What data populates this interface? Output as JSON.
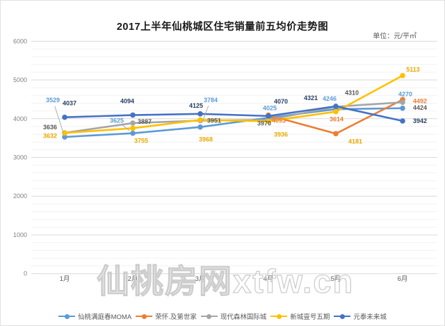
{
  "header": {
    "title": "2017上半年仙桃城区住宅销量前五均价走势图",
    "unit_label": "单位：元/平㎡"
  },
  "watermark": {
    "text": "仙桃房网xtfw.cn"
  },
  "chart_data": {
    "type": "line",
    "title": "2017上半年仙桃城区住宅销量前五均价走势图",
    "unit": "元/平㎡",
    "categories": [
      "1月",
      "2月",
      "3月",
      "4月",
      "5月",
      "6月"
    ],
    "ylim": [
      0,
      6000
    ],
    "y_major_ticks": [
      0,
      1000,
      2000,
      3000,
      4000,
      5000,
      6000
    ],
    "y_minor_step": 200,
    "grid": true,
    "legend_position": "bottom",
    "series": [
      {
        "name": "仙桃满庭春MOMA",
        "color": "#5B9BD5",
        "label_color": "#5B9BD5",
        "values": [
          3529,
          3625,
          3784,
          4025,
          4246,
          4270
        ]
      },
      {
        "name": "荣怀.及第世家",
        "color": "#ED7D31",
        "label_color": "#ED7D31",
        "values": [
          null,
          null,
          null,
          4093,
          3614,
          4492
        ]
      },
      {
        "name": "现代森林国际城",
        "color": "#A5A5A5",
        "label_color": "#595959",
        "values": [
          3636,
          3887,
          3951,
          3970,
          4310,
          4424
        ]
      },
      {
        "name": "新城壹号五期",
        "color": "#FFC000",
        "label_color": "#E9A800",
        "values": [
          3632,
          3755,
          3968,
          3936,
          4181,
          5113
        ]
      },
      {
        "name": "元泰未来城",
        "color": "#4472C4",
        "label_color": "#263F63",
        "values": [
          4037,
          4094,
          4125,
          4070,
          4321,
          3942
        ]
      }
    ]
  }
}
